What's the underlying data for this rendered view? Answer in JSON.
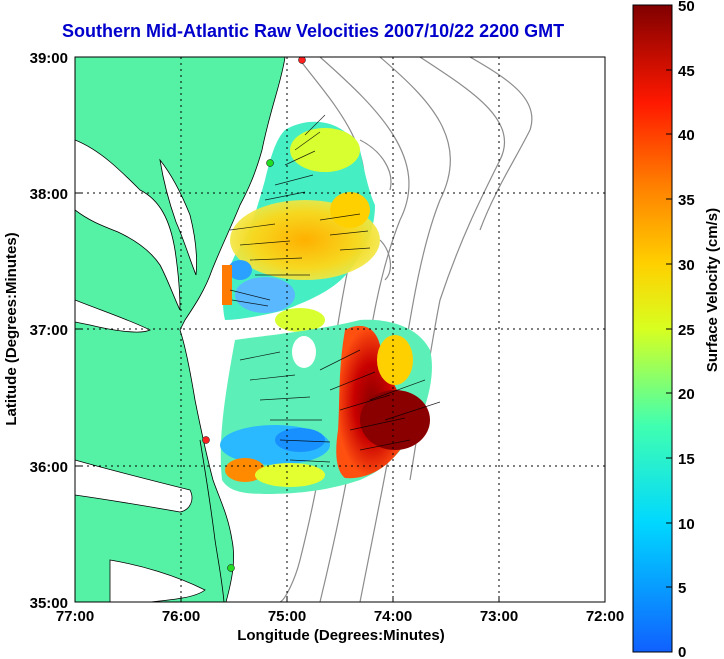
{
  "title": "Southern Mid-Atlantic Raw Velocities 2007/10/22 2200 GMT",
  "xlabel": "Longitude (Degrees:Minutes)",
  "ylabel": "Latitude (Degrees:Minutes)",
  "colorbar_label": "Surface Velocity (cm/s)",
  "x_ticks": [
    "77:00",
    "76:00",
    "75:00",
    "74:00",
    "73:00",
    "72:00"
  ],
  "y_ticks": [
    "39:00",
    "38:00",
    "37:00",
    "36:00",
    "35:00"
  ],
  "colorbar_ticks": [
    "50",
    "45",
    "40",
    "35",
    "30",
    "25",
    "20",
    "15",
    "10",
    "5",
    "0"
  ],
  "colors": {
    "land": "#55f2a6",
    "title": "#0000cc",
    "coast": "#000000",
    "bathymetry": "#8c8c8c",
    "station": "#ff2020",
    "station_green": "#22dd22"
  },
  "chart_data": {
    "type": "heatmap",
    "title": "Southern Mid-Atlantic Raw Velocities 2007/10/22 2200 GMT",
    "xlabel": "Longitude (Degrees:Minutes)",
    "ylabel": "Latitude (Degrees:Minutes)",
    "xlim": [
      "77:00",
      "72:00"
    ],
    "ylim": [
      "35:00",
      "39:00"
    ],
    "colorbar": {
      "label": "Surface Velocity (cm/s)",
      "range": [
        0,
        50
      ],
      "colormap": "jet"
    },
    "grid": true,
    "regions": [
      {
        "lon": -75.0,
        "lat": 38.0,
        "velocity": 28
      },
      {
        "lon": -74.6,
        "lat": 38.1,
        "velocity": 18
      },
      {
        "lon": -75.3,
        "lat": 37.2,
        "velocity": 8
      },
      {
        "lon": -74.4,
        "lat": 36.6,
        "velocity": 42
      },
      {
        "lon": -74.1,
        "lat": 36.3,
        "velocity": 48
      },
      {
        "lon": -75.0,
        "lat": 36.1,
        "velocity": 8
      },
      {
        "lon": -75.5,
        "lat": 36.0,
        "velocity": 32
      }
    ],
    "stations": [
      {
        "lon": -75.13,
        "lat": 39.0,
        "color": "red"
      },
      {
        "lon": -75.16,
        "lat": 38.23,
        "color": "green"
      },
      {
        "lon": -75.75,
        "lat": 36.18,
        "color": "red"
      },
      {
        "lon": -75.53,
        "lat": 35.25,
        "color": "green"
      }
    ]
  }
}
